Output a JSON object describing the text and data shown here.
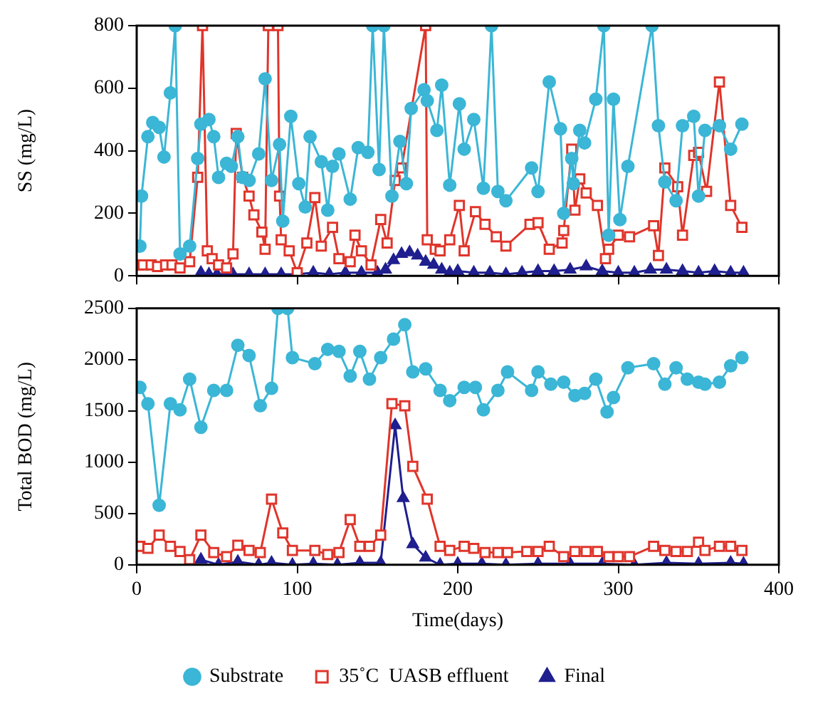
{
  "chart_data": [
    {
      "type": "line",
      "ylabel": "SS (mg/L)",
      "xlim": [
        0,
        400
      ],
      "xticks": [
        0,
        100,
        200,
        300,
        400
      ],
      "ylim": [
        0,
        800
      ],
      "yticks": [
        0,
        200,
        400,
        600,
        800
      ],
      "tick_labels": "y",
      "grid": false,
      "legend": false,
      "series": [
        {
          "color": "#3bb6d6",
          "marker": "circle",
          "x": [
            2,
            3,
            7,
            10,
            14,
            17,
            21,
            24,
            27,
            33,
            38,
            40,
            45,
            48,
            51,
            56,
            59,
            63,
            66,
            70,
            76,
            80,
            84,
            89,
            91,
            96,
            101,
            105,
            108,
            115,
            119,
            122,
            126,
            133,
            138,
            144,
            147,
            151,
            154,
            159,
            164,
            168,
            171,
            179,
            181,
            187,
            190,
            195,
            201,
            204,
            210,
            216,
            221,
            225,
            230,
            246,
            250,
            257,
            264,
            266,
            271,
            272,
            276,
            279,
            286,
            291,
            294,
            297,
            301,
            306,
            321,
            325,
            329,
            336,
            340,
            347,
            350,
            354,
            363,
            370,
            377
          ],
          "values": [
            95,
            255,
            445,
            490,
            475,
            380,
            585,
            800,
            70,
            95,
            375,
            485,
            500,
            445,
            315,
            360,
            350,
            445,
            315,
            305,
            390,
            630,
            305,
            420,
            175,
            510,
            295,
            220,
            445,
            365,
            210,
            350,
            390,
            245,
            410,
            395,
            800,
            340,
            800,
            255,
            430,
            295,
            535,
            595,
            560,
            465,
            610,
            290,
            550,
            405,
            500,
            280,
            800,
            270,
            240,
            345,
            270,
            620,
            470,
            200,
            375,
            295,
            465,
            425,
            565,
            800,
            130,
            565,
            180,
            350,
            800,
            480,
            300,
            240,
            480,
            510,
            255,
            465,
            480,
            405,
            485
          ]
        },
        {
          "color": "#e0352b",
          "marker": "square",
          "x": [
            1,
            4,
            9,
            13,
            18,
            22,
            27,
            33,
            38,
            41,
            44,
            47,
            51,
            56,
            60,
            62,
            66,
            70,
            73,
            78,
            80,
            82,
            88,
            89,
            90,
            95,
            100,
            106,
            111,
            115,
            122,
            126,
            133,
            136,
            140,
            146,
            152,
            156,
            161,
            165,
            180,
            181,
            186,
            189,
            195,
            201,
            204,
            211,
            217,
            224,
            230,
            245,
            250,
            257,
            265,
            266,
            271,
            273,
            276,
            280,
            287,
            292,
            294,
            300,
            307,
            322,
            325,
            329,
            337,
            340,
            347,
            350,
            355,
            363,
            370,
            377
          ],
          "values": [
            35,
            35,
            35,
            30,
            35,
            35,
            25,
            45,
            315,
            800,
            80,
            55,
            35,
            25,
            70,
            455,
            315,
            255,
            195,
            140,
            85,
            800,
            800,
            255,
            115,
            80,
            10,
            105,
            250,
            95,
            155,
            55,
            45,
            130,
            80,
            35,
            180,
            105,
            305,
            345,
            800,
            115,
            85,
            80,
            115,
            225,
            80,
            205,
            165,
            125,
            95,
            165,
            170,
            85,
            105,
            145,
            405,
            210,
            310,
            265,
            225,
            55,
            85,
            130,
            125,
            160,
            65,
            345,
            285,
            130,
            385,
            395,
            270,
            620,
            225,
            155
          ]
        },
        {
          "color": "#1f1f8f",
          "marker": "triangle",
          "x": [
            40,
            45,
            50,
            60,
            70,
            80,
            90,
            100,
            110,
            120,
            130,
            140,
            150,
            155,
            160,
            165,
            170,
            175,
            180,
            185,
            190,
            195,
            200,
            210,
            220,
            230,
            240,
            250,
            260,
            270,
            280,
            290,
            300,
            310,
            320,
            330,
            340,
            350,
            360,
            370,
            378
          ],
          "values": [
            10,
            5,
            5,
            5,
            5,
            5,
            5,
            5,
            10,
            5,
            10,
            10,
            10,
            20,
            50,
            70,
            75,
            65,
            45,
            35,
            20,
            10,
            15,
            10,
            10,
            5,
            10,
            15,
            15,
            20,
            30,
            15,
            10,
            10,
            20,
            20,
            15,
            10,
            15,
            10,
            10
          ]
        }
      ]
    },
    {
      "type": "line",
      "xlabel": "Time(days)",
      "ylabel": "Total BOD (mg/L)",
      "xlim": [
        0,
        400
      ],
      "xticks": [
        0,
        100,
        200,
        300,
        400
      ],
      "ylim": [
        0,
        2500
      ],
      "yticks": [
        0,
        500,
        1000,
        1500,
        2000,
        2500
      ],
      "grid": false,
      "legend": "bottom",
      "series": [
        {
          "name": "Substrate",
          "color": "#3bb6d6",
          "marker": "circle",
          "x": [
            2,
            7,
            14,
            21,
            27,
            33,
            40,
            48,
            56,
            63,
            70,
            77,
            84,
            88,
            94,
            97,
            111,
            119,
            126,
            133,
            139,
            145,
            152,
            160,
            167,
            172,
            180,
            189,
            195,
            204,
            211,
            216,
            225,
            231,
            246,
            250,
            258,
            266,
            273,
            279,
            286,
            293,
            297,
            306,
            322,
            329,
            336,
            343,
            350,
            354,
            363,
            370,
            377
          ],
          "values": [
            1730,
            1570,
            580,
            1570,
            1510,
            1810,
            1340,
            1700,
            1700,
            2140,
            2040,
            1550,
            1720,
            2500,
            2500,
            2020,
            1960,
            2100,
            2080,
            1840,
            2080,
            1810,
            2020,
            2200,
            2340,
            1880,
            1910,
            1700,
            1600,
            1730,
            1730,
            1510,
            1700,
            1880,
            1700,
            1880,
            1760,
            1780,
            1650,
            1670,
            1810,
            1490,
            1630,
            1920,
            1960,
            1760,
            1920,
            1810,
            1780,
            1760,
            1780,
            1940,
            2020
          ]
        },
        {
          "name": "35˚C  UASB effluent",
          "color": "#e0352b",
          "marker": "square",
          "x": [
            2,
            7,
            14,
            21,
            27,
            33,
            40,
            48,
            56,
            63,
            70,
            77,
            84,
            91,
            97,
            111,
            119,
            126,
            133,
            139,
            145,
            152,
            159,
            167,
            172,
            181,
            189,
            195,
            204,
            210,
            217,
            225,
            231,
            243,
            250,
            257,
            266,
            273,
            280,
            287,
            294,
            300,
            307,
            322,
            329,
            336,
            343,
            350,
            354,
            363,
            370,
            377
          ],
          "values": [
            180,
            160,
            290,
            180,
            130,
            50,
            290,
            120,
            80,
            190,
            140,
            120,
            640,
            310,
            140,
            140,
            100,
            120,
            440,
            180,
            180,
            290,
            1570,
            1550,
            960,
            640,
            180,
            140,
            180,
            160,
            120,
            120,
            120,
            130,
            130,
            180,
            80,
            130,
            130,
            130,
            80,
            80,
            80,
            180,
            140,
            130,
            130,
            220,
            140,
            180,
            180,
            140
          ]
        },
        {
          "name": "Final",
          "color": "#1f1f8f",
          "marker": "triangle",
          "x": [
            40,
            51,
            63,
            76,
            84,
            97,
            110,
            125,
            139,
            152,
            161,
            166,
            172,
            180,
            189,
            200,
            215,
            230,
            250,
            270,
            290,
            310,
            330,
            350,
            370,
            378
          ],
          "values": [
            50,
            0,
            30,
            0,
            20,
            0,
            10,
            0,
            20,
            20,
            1360,
            650,
            200,
            70,
            0,
            10,
            10,
            0,
            10,
            10,
            10,
            0,
            20,
            10,
            20,
            10
          ]
        }
      ]
    }
  ]
}
